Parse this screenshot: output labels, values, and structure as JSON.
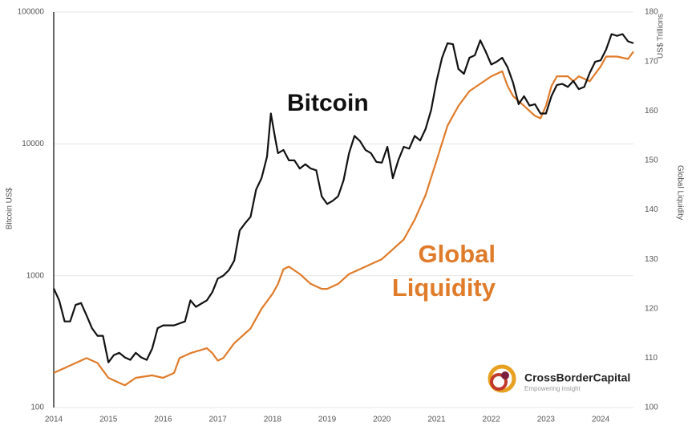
{
  "chart_data": {
    "type": "line",
    "ylabel": "Bitcoin US$",
    "y2label": "Global Liquidity",
    "y2unit": "US$ Trillions",
    "ylog": true,
    "grid": true,
    "xlim": [
      2014,
      2024.6
    ],
    "xticks": [
      2014,
      2015,
      2016,
      2017,
      2018,
      2019,
      2020,
      2021,
      2022,
      2023,
      2024
    ],
    "ylim": [
      100,
      100000
    ],
    "yticks": [
      100,
      1000,
      10000,
      100000
    ],
    "y2lim": [
      100,
      180
    ],
    "y2ticks": [
      100,
      110,
      120,
      130,
      140,
      150,
      160,
      170,
      180
    ],
    "annotations": [
      "Bitcoin",
      "Global Liquidity"
    ],
    "logo_name": "CrossBorderCapital",
    "logo_tagline": "Empowering insight",
    "series": [
      {
        "name": "Bitcoin",
        "color": "#111111",
        "axis": "y",
        "x": [
          2014.0,
          2014.1,
          2014.2,
          2014.3,
          2014.4,
          2014.5,
          2014.6,
          2014.7,
          2014.8,
          2014.9,
          2015.0,
          2015.1,
          2015.2,
          2015.3,
          2015.4,
          2015.5,
          2015.6,
          2015.7,
          2015.8,
          2015.9,
          2016.0,
          2016.2,
          2016.4,
          2016.5,
          2016.6,
          2016.8,
          2016.9,
          2017.0,
          2017.1,
          2017.2,
          2017.3,
          2017.4,
          2017.5,
          2017.6,
          2017.7,
          2017.8,
          2017.9,
          2017.97,
          2018.05,
          2018.1,
          2018.2,
          2018.3,
          2018.4,
          2018.5,
          2018.6,
          2018.7,
          2018.8,
          2018.9,
          2019.0,
          2019.1,
          2019.2,
          2019.3,
          2019.4,
          2019.5,
          2019.6,
          2019.7,
          2019.8,
          2019.9,
          2020.0,
          2020.1,
          2020.2,
          2020.3,
          2020.4,
          2020.5,
          2020.6,
          2020.7,
          2020.8,
          2020.9,
          2021.0,
          2021.1,
          2021.2,
          2021.3,
          2021.4,
          2021.5,
          2021.6,
          2021.7,
          2021.8,
          2021.9,
          2022.0,
          2022.1,
          2022.2,
          2022.3,
          2022.4,
          2022.5,
          2022.6,
          2022.7,
          2022.8,
          2022.9,
          2023.0,
          2023.1,
          2023.2,
          2023.3,
          2023.4,
          2023.5,
          2023.6,
          2023.7,
          2023.8,
          2023.9,
          2024.0,
          2024.1,
          2024.2,
          2024.3,
          2024.4,
          2024.5,
          2024.6
        ],
        "values": [
          800,
          650,
          450,
          450,
          600,
          620,
          500,
          400,
          350,
          350,
          220,
          250,
          260,
          240,
          230,
          260,
          240,
          230,
          280,
          400,
          420,
          420,
          450,
          650,
          580,
          650,
          750,
          950,
          1000,
          1100,
          1300,
          2200,
          2500,
          2800,
          4500,
          5500,
          8000,
          17000,
          11000,
          8500,
          9000,
          7500,
          7500,
          6500,
          7000,
          6500,
          6300,
          4000,
          3500,
          3700,
          4000,
          5300,
          8500,
          11500,
          10500,
          9000,
          8500,
          7300,
          7200,
          9500,
          5500,
          7500,
          9500,
          9200,
          11500,
          10600,
          13000,
          18000,
          30000,
          45000,
          58000,
          57000,
          37000,
          34000,
          45000,
          47000,
          61000,
          50000,
          40000,
          42000,
          45000,
          38000,
          29000,
          20000,
          23000,
          19500,
          20000,
          17000,
          17000,
          23000,
          28000,
          28500,
          27000,
          30000,
          26000,
          27000,
          34500,
          42000,
          43000,
          52000,
          68000,
          66000,
          68000,
          60000,
          58000
        ]
      },
      {
        "name": "Global Liquidity",
        "color": "#e07b2a",
        "axis": "y2",
        "x": [
          2014.0,
          2014.2,
          2014.4,
          2014.6,
          2014.8,
          2015.0,
          2015.2,
          2015.3,
          2015.5,
          2015.8,
          2016.0,
          2016.2,
          2016.3,
          2016.5,
          2016.8,
          2016.9,
          2017.0,
          2017.1,
          2017.3,
          2017.6,
          2017.8,
          2018.0,
          2018.1,
          2018.2,
          2018.3,
          2018.5,
          2018.7,
          2018.9,
          2019.0,
          2019.2,
          2019.4,
          2019.6,
          2019.8,
          2020.0,
          2020.2,
          2020.4,
          2020.6,
          2020.8,
          2021.0,
          2021.2,
          2021.4,
          2021.6,
          2021.8,
          2022.0,
          2022.2,
          2022.3,
          2022.4,
          2022.6,
          2022.8,
          2022.9,
          2023.0,
          2023.1,
          2023.2,
          2023.4,
          2023.5,
          2023.6,
          2023.8,
          2024.0,
          2024.1,
          2024.3,
          2024.5,
          2024.6
        ],
        "values": [
          107,
          108,
          109,
          110,
          109,
          106,
          105,
          104.5,
          106,
          106.5,
          106,
          107,
          110,
          111,
          112,
          111,
          109.5,
          110,
          113,
          116,
          120,
          123,
          125,
          128,
          128.5,
          127,
          125,
          124,
          124,
          125,
          127,
          128,
          129,
          130,
          132,
          134,
          138,
          143,
          150,
          157,
          161,
          164,
          165.5,
          167,
          168,
          165,
          163,
          161,
          159,
          158.5,
          161,
          165,
          167,
          167,
          166,
          167,
          166,
          169,
          171,
          171,
          170.5,
          172
        ]
      }
    ]
  }
}
